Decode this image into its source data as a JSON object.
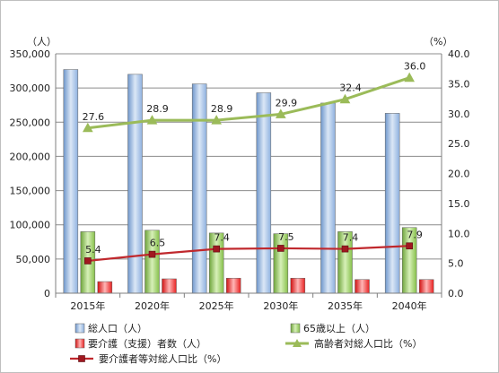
{
  "chart_data": {
    "type": "bar",
    "categories": [
      "2015年",
      "2020年",
      "2025年",
      "2030年",
      "2035年",
      "2040年"
    ],
    "left_axis": {
      "unit_label": "（人）",
      "ylim": [
        0,
        350000
      ],
      "tick_step": 50000,
      "tick_labels": [
        "0",
        "50,000",
        "100,000",
        "150,000",
        "200,000",
        "250,000",
        "300,000",
        "350,000"
      ]
    },
    "right_axis": {
      "unit_label": "（%）",
      "ylim": [
        0,
        40
      ],
      "tick_step": 5,
      "tick_labels": [
        "0.0",
        "5.0",
        "10.0",
        "15.0",
        "20.0",
        "25.0",
        "30.0",
        "35.0",
        "40.0"
      ]
    },
    "bar_series": [
      {
        "name": "総人口（人）",
        "color": "#8db4e2",
        "values": [
          327000,
          320000,
          306000,
          293000,
          278000,
          263000
        ]
      },
      {
        "name": "65歳以上（人）",
        "color": "#92d050",
        "values": [
          90000,
          92000,
          88000,
          87000,
          90000,
          96000
        ]
      },
      {
        "name": "要介護（支援）者数（人）",
        "color": "#ff0000",
        "values": [
          17000,
          21000,
          22000,
          22000,
          20000,
          20000
        ]
      }
    ],
    "line_series": [
      {
        "name": "高齢者対総人口比（%）",
        "color": "#9bbb59",
        "marker": "triangle",
        "values": [
          27.6,
          28.9,
          28.9,
          29.9,
          32.4,
          36.0
        ],
        "labels": [
          "27.6",
          "28.9",
          "28.9",
          "29.9",
          "32.4",
          "36.0"
        ]
      },
      {
        "name": "要介護者等対総人口比（%）",
        "color": "#c0282d",
        "marker": "square",
        "values": [
          5.4,
          6.5,
          7.4,
          7.5,
          7.4,
          7.9
        ],
        "labels": [
          "5.4",
          "6.5",
          "7.4",
          "7.5",
          "7.4",
          "7.9"
        ]
      }
    ],
    "grid": true,
    "legend_position": "bottom"
  }
}
